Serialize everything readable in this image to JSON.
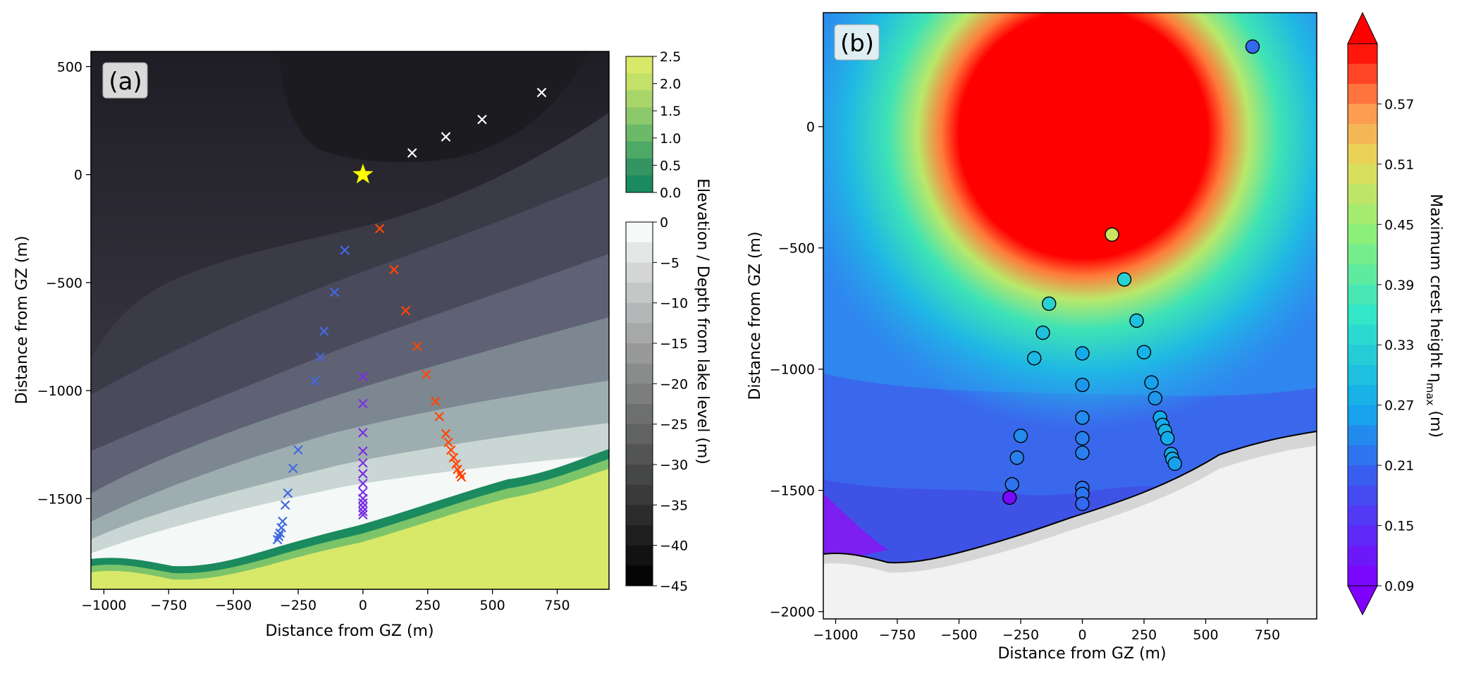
{
  "panel_a": {
    "label": "(a)",
    "xlabel": "Distance from GZ (m)",
    "ylabel": "Distance from GZ (m)",
    "x_ticks": [
      "−1000",
      "−750",
      "−500",
      "−250",
      "0",
      "250",
      "500",
      "750"
    ],
    "y_ticks": [
      "500",
      "0",
      "−500",
      "−1000",
      "−1500"
    ],
    "colorbar_label": "Elevation / Depth from lake level (m)",
    "elevation_ticks": [
      "2.5",
      "2.0",
      "1.5",
      "1.0",
      "0.5",
      "0.0"
    ],
    "depth_ticks": [
      "0",
      "−5",
      "−10",
      "−15",
      "−20",
      "−25",
      "−30",
      "−35",
      "−40",
      "−45"
    ]
  },
  "panel_b": {
    "label": "(b)",
    "xlabel": "Distance from GZ (m)",
    "ylabel": "Distance from GZ (m)",
    "x_ticks": [
      "−1000",
      "−750",
      "−500",
      "−250",
      "0",
      "250",
      "500",
      "750"
    ],
    "y_ticks": [
      "0",
      "−500",
      "−1000",
      "−1500",
      "−2000"
    ],
    "colorbar_label": "Maximum crest height η",
    "colorbar_label_sub": "max",
    "colorbar_label_unit": " (m)",
    "colorbar_ticks": [
      "0.57",
      "0.51",
      "0.45",
      "0.39",
      "0.33",
      "0.27",
      "0.21",
      "0.15",
      "0.09"
    ]
  },
  "chart_data": [
    {
      "type": "scatter",
      "panel": "a",
      "title": "",
      "xlabel": "Distance from GZ (m)",
      "ylabel": "Distance from GZ (m)",
      "xlim": [
        -1050,
        950
      ],
      "ylim": [
        -1920,
        570
      ],
      "background": "contour map of elevation / depth from lake level",
      "colorbar": {
        "label": "Elevation / Depth from lake level (m)",
        "elevation_range": [
          0.0,
          2.5
        ],
        "depth_range": [
          -45,
          0
        ]
      },
      "series": [
        {
          "name": "ground zero",
          "marker": "star",
          "color": "#ffff00",
          "points": [
            [
              0,
              0
            ]
          ]
        },
        {
          "name": "white gauges",
          "marker": "x",
          "color": "#ffffff",
          "points": [
            [
              190,
              100
            ],
            [
              320,
              175
            ],
            [
              460,
              255
            ],
            [
              690,
              380
            ]
          ]
        },
        {
          "name": "blue gauges",
          "marker": "x",
          "color": "#4169e1",
          "points": [
            [
              -70,
              -350
            ],
            [
              -110,
              -545
            ],
            [
              -150,
              -725
            ],
            [
              -165,
              -845
            ],
            [
              -185,
              -955
            ],
            [
              -250,
              -1275
            ],
            [
              -270,
              -1360
            ],
            [
              -290,
              -1475
            ],
            [
              -300,
              -1530
            ],
            [
              -310,
              -1605
            ],
            [
              -315,
              -1635
            ],
            [
              -320,
              -1660
            ],
            [
              -325,
              -1675
            ],
            [
              -330,
              -1690
            ]
          ]
        },
        {
          "name": "purple gauges",
          "marker": "x",
          "color": "#7b2fe0",
          "points": [
            [
              0,
              -935
            ],
            [
              0,
              -1060
            ],
            [
              0,
              -1195
            ],
            [
              0,
              -1280
            ],
            [
              0,
              -1335
            ],
            [
              0,
              -1385
            ],
            [
              0,
              -1430
            ],
            [
              0,
              -1470
            ],
            [
              0,
              -1500
            ],
            [
              0,
              -1520
            ],
            [
              0,
              -1540
            ],
            [
              0,
              -1560
            ],
            [
              0,
              -1575
            ]
          ]
        },
        {
          "name": "red gauges",
          "marker": "x",
          "color": "#ff4500",
          "points": [
            [
              65,
              -250
            ],
            [
              120,
              -440
            ],
            [
              165,
              -630
            ],
            [
              210,
              -795
            ],
            [
              245,
              -925
            ],
            [
              280,
              -1050
            ],
            [
              295,
              -1120
            ],
            [
              320,
              -1200
            ],
            [
              330,
              -1240
            ],
            [
              340,
              -1275
            ],
            [
              350,
              -1310
            ],
            [
              360,
              -1340
            ],
            [
              365,
              -1365
            ],
            [
              375,
              -1385
            ],
            [
              380,
              -1400
            ]
          ]
        }
      ]
    },
    {
      "type": "scatter",
      "panel": "b",
      "title": "",
      "xlabel": "Distance from GZ (m)",
      "ylabel": "Distance from GZ (m)",
      "xlim": [
        -1050,
        950
      ],
      "ylim": [
        -2030,
        470
      ],
      "background": "filled contour of maximum crest height",
      "colorbar": {
        "label": "Maximum crest height η_max (m)",
        "range": [
          0.09,
          0.63
        ],
        "extend": "both"
      },
      "series": [
        {
          "name": "gauge crest heights (m)",
          "marker": "o",
          "points": [
            {
              "x": 690,
              "y": 330,
              "value": 0.21
            },
            {
              "x": 120,
              "y": -445,
              "value": 0.49
            },
            {
              "x": 170,
              "y": -630,
              "value": 0.33
            },
            {
              "x": -135,
              "y": -730,
              "value": 0.33
            },
            {
              "x": -160,
              "y": -850,
              "value": 0.3
            },
            {
              "x": -195,
              "y": -955,
              "value": 0.29
            },
            {
              "x": 0,
              "y": -935,
              "value": 0.27
            },
            {
              "x": 220,
              "y": -800,
              "value": 0.3
            },
            {
              "x": 250,
              "y": -930,
              "value": 0.28
            },
            {
              "x": 280,
              "y": -1055,
              "value": 0.26
            },
            {
              "x": 295,
              "y": -1120,
              "value": 0.25
            },
            {
              "x": 0,
              "y": -1065,
              "value": 0.25
            },
            {
              "x": 0,
              "y": -1200,
              "value": 0.24
            },
            {
              "x": 0,
              "y": -1285,
              "value": 0.23
            },
            {
              "x": 0,
              "y": -1345,
              "value": 0.23
            },
            {
              "x": 0,
              "y": -1490,
              "value": 0.22
            },
            {
              "x": 0,
              "y": -1515,
              "value": 0.22
            },
            {
              "x": 0,
              "y": -1555,
              "value": 0.21
            },
            {
              "x": 315,
              "y": -1200,
              "value": 0.27
            },
            {
              "x": 325,
              "y": -1230,
              "value": 0.27
            },
            {
              "x": 335,
              "y": -1255,
              "value": 0.28
            },
            {
              "x": 345,
              "y": -1285,
              "value": 0.27
            },
            {
              "x": 360,
              "y": -1350,
              "value": 0.27
            },
            {
              "x": 365,
              "y": -1370,
              "value": 0.27
            },
            {
              "x": 375,
              "y": -1390,
              "value": 0.26
            },
            {
              "x": -250,
              "y": -1275,
              "value": 0.24
            },
            {
              "x": -265,
              "y": -1365,
              "value": 0.23
            },
            {
              "x": -285,
              "y": -1475,
              "value": 0.22
            },
            {
              "x": -295,
              "y": -1530,
              "value": 0.1
            }
          ]
        }
      ]
    }
  ]
}
